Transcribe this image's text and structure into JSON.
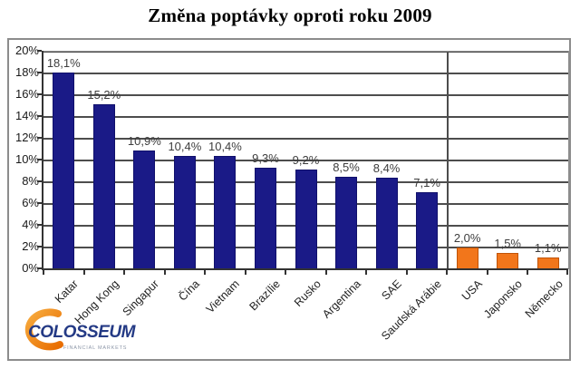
{
  "title": "Změna poptávky oproti roku 2009",
  "logo": {
    "brand": "COLOSSEUM",
    "tagline": "FINANCIAL MARKETS",
    "brand_color": "#243a85",
    "swoosh_color": "#ef7d12"
  },
  "chart_data": {
    "type": "bar",
    "title": "Změna poptávky oproti roku 2009",
    "categories": [
      "Katar",
      "Hong Kong",
      "Singapur",
      "Čína",
      "Vietnam",
      "Brazílie",
      "Rusko",
      "Argentina",
      "SAE",
      "Saudská Arábie",
      "USA",
      "Japonsko",
      "Německo"
    ],
    "values": [
      18.1,
      15.2,
      10.9,
      10.4,
      10.4,
      9.3,
      9.2,
      8.5,
      8.4,
      7.1,
      2.0,
      1.5,
      1.1
    ],
    "value_labels": [
      "18,1%",
      "15,2%",
      "10,9%",
      "10,4%",
      "10,4%",
      "9,3%",
      "9,2%",
      "8,5%",
      "8,4%",
      "7,1%",
      "2,0%",
      "1,5%",
      "1,1%"
    ],
    "ytick_labels": [
      "0%",
      "2%",
      "4%",
      "6%",
      "8%",
      "10%",
      "12%",
      "14%",
      "16%",
      "18%",
      "20%"
    ],
    "ylim": [
      0,
      20
    ],
    "ytick_step": 2,
    "grid": true,
    "legend_position": "none",
    "xlabel": "",
    "ylabel": "",
    "bar_color_primary": "#1a1a87",
    "bar_border_primary": "#10106b",
    "bar_color_secondary": "#f2761b",
    "bar_border_secondary": "#c05408",
    "secondary_start_index": 10,
    "separator_after_index": 9
  }
}
